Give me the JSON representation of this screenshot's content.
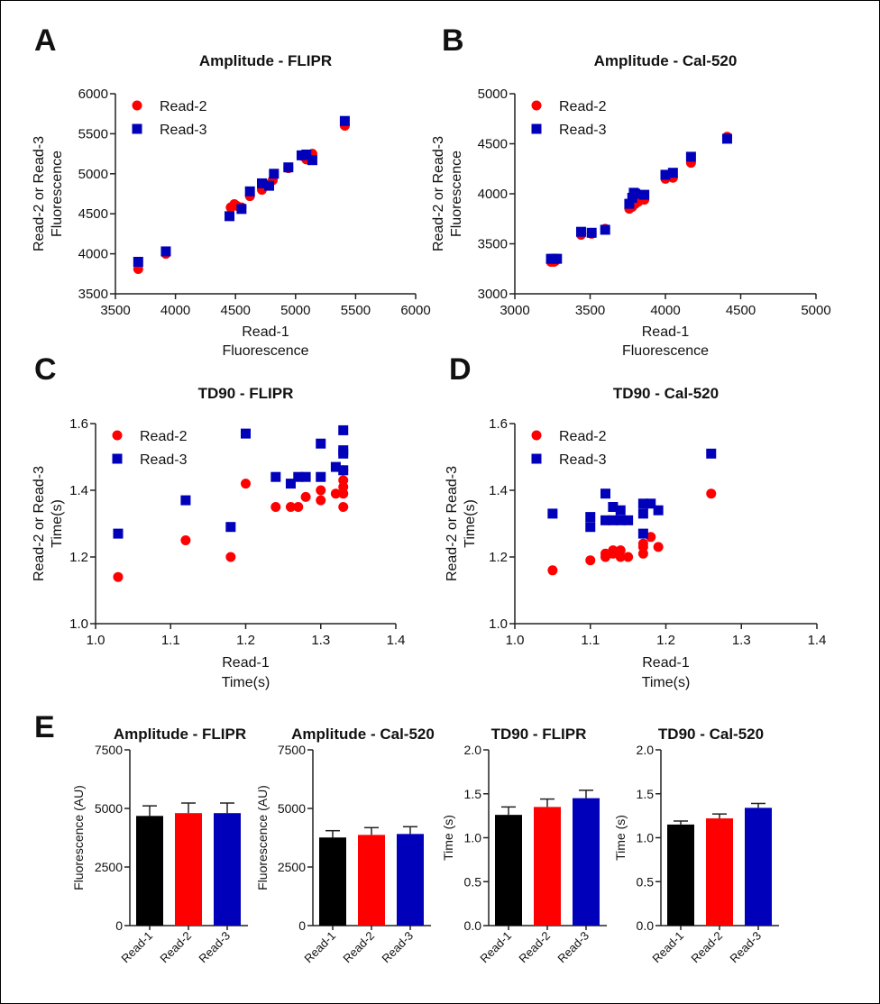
{
  "panel_letters": [
    "A",
    "B",
    "C",
    "D",
    "E"
  ],
  "colors": {
    "read1": "#000000",
    "read2": "#ff0000",
    "read3": "#0000bb"
  },
  "chart_data": [
    {
      "type": "scatter",
      "title": "Amplitude - FLIPR",
      "xlabel": [
        "Read-1",
        "Fluorescence"
      ],
      "ylabel": [
        "Read-2 or Read-3",
        "Fluorescence"
      ],
      "xlim": [
        3500,
        6000
      ],
      "ylim": [
        3500,
        6000
      ],
      "xticks": [
        "3500",
        "4000",
        "4500",
        "5000",
        "5500",
        "6000"
      ],
      "yticks": [
        "3500",
        "4000",
        "4500",
        "5000",
        "5500",
        "6000"
      ],
      "legend": "top-left",
      "series": [
        {
          "name": "Read-2",
          "marker": "circle",
          "color": "#ff0000",
          "points": [
            [
              3690,
              3810
            ],
            [
              3920,
              4000
            ],
            [
              4460,
              4580
            ],
            [
              4490,
              4620
            ],
            [
              4510,
              4600
            ],
            [
              4550,
              4580
            ],
            [
              4620,
              4720
            ],
            [
              4720,
              4800
            ],
            [
              4780,
              4870
            ],
            [
              4810,
              4920
            ],
            [
              4940,
              5070
            ],
            [
              5060,
              5220
            ],
            [
              5090,
              5180
            ],
            [
              5140,
              5250
            ],
            [
              5410,
              5600
            ]
          ]
        },
        {
          "name": "Read-3",
          "marker": "square",
          "color": "#0000bb",
          "points": [
            [
              3690,
              3900
            ],
            [
              3920,
              4030
            ],
            [
              4450,
              4470
            ],
            [
              4550,
              4560
            ],
            [
              4620,
              4780
            ],
            [
              4720,
              4880
            ],
            [
              4780,
              4850
            ],
            [
              4820,
              5000
            ],
            [
              4940,
              5080
            ],
            [
              5050,
              5230
            ],
            [
              5090,
              5240
            ],
            [
              5140,
              5170
            ],
            [
              5410,
              5660
            ]
          ]
        }
      ]
    },
    {
      "type": "scatter",
      "title": "Amplitude - Cal-520",
      "xlabel": [
        "Read-1",
        "Fluorescence"
      ],
      "ylabel": [
        "Read-2 or Read-3",
        "Fluorescence"
      ],
      "xlim": [
        3000,
        5000
      ],
      "ylim": [
        3000,
        5000
      ],
      "xticks": [
        "3000",
        "3500",
        "4000",
        "4500",
        "5000"
      ],
      "yticks": [
        "3000",
        "3500",
        "4000",
        "4500",
        "5000"
      ],
      "legend": "top-left",
      "series": [
        {
          "name": "Read-2",
          "marker": "circle",
          "color": "#ff0000",
          "points": [
            [
              3240,
              3320
            ],
            [
              3260,
              3320
            ],
            [
              3270,
              3330
            ],
            [
              3440,
              3590
            ],
            [
              3510,
              3600
            ],
            [
              3600,
              3650
            ],
            [
              3760,
              3850
            ],
            [
              3780,
              3870
            ],
            [
              3790,
              3930
            ],
            [
              3800,
              3900
            ],
            [
              3820,
              3920
            ],
            [
              3860,
              3940
            ],
            [
              4000,
              4150
            ],
            [
              4050,
              4160
            ],
            [
              4170,
              4310
            ],
            [
              4410,
              4570
            ]
          ]
        },
        {
          "name": "Read-3",
          "marker": "square",
          "color": "#0000bb",
          "points": [
            [
              3240,
              3350
            ],
            [
              3260,
              3350
            ],
            [
              3280,
              3350
            ],
            [
              3440,
              3620
            ],
            [
              3510,
              3610
            ],
            [
              3600,
              3640
            ],
            [
              3760,
              3900
            ],
            [
              3780,
              3960
            ],
            [
              3790,
              4010
            ],
            [
              3800,
              4000
            ],
            [
              3860,
              3990
            ],
            [
              4000,
              4190
            ],
            [
              4050,
              4210
            ],
            [
              4170,
              4370
            ],
            [
              4410,
              4550
            ]
          ]
        }
      ]
    },
    {
      "type": "scatter",
      "title": "TD90 - FLIPR",
      "xlabel": [
        "Read-1",
        "Time(s)"
      ],
      "ylabel": [
        "Read-2 or Read-3",
        "Time(s)"
      ],
      "xlim": [
        1.0,
        1.4
      ],
      "ylim": [
        1.0,
        1.6
      ],
      "xticks": [
        "1.0",
        "1.1",
        "1.2",
        "1.3",
        "1.4"
      ],
      "yticks": [
        "1.0",
        "1.2",
        "1.4",
        "1.6"
      ],
      "legend": "top-left",
      "series": [
        {
          "name": "Read-2",
          "marker": "circle",
          "color": "#ff0000",
          "points": [
            [
              1.03,
              1.14
            ],
            [
              1.12,
              1.25
            ],
            [
              1.18,
              1.2
            ],
            [
              1.2,
              1.42
            ],
            [
              1.24,
              1.35
            ],
            [
              1.26,
              1.35
            ],
            [
              1.27,
              1.35
            ],
            [
              1.28,
              1.38
            ],
            [
              1.3,
              1.37
            ],
            [
              1.3,
              1.4
            ],
            [
              1.32,
              1.39
            ],
            [
              1.33,
              1.35
            ],
            [
              1.33,
              1.39
            ],
            [
              1.33,
              1.41
            ],
            [
              1.33,
              1.43
            ],
            [
              1.33,
              1.46
            ]
          ]
        },
        {
          "name": "Read-3",
          "marker": "square",
          "color": "#0000bb",
          "points": [
            [
              1.03,
              1.27
            ],
            [
              1.12,
              1.37
            ],
            [
              1.18,
              1.29
            ],
            [
              1.2,
              1.57
            ],
            [
              1.24,
              1.44
            ],
            [
              1.26,
              1.42
            ],
            [
              1.27,
              1.44
            ],
            [
              1.28,
              1.44
            ],
            [
              1.3,
              1.44
            ],
            [
              1.3,
              1.54
            ],
            [
              1.32,
              1.47
            ],
            [
              1.33,
              1.46
            ],
            [
              1.33,
              1.51
            ],
            [
              1.33,
              1.52
            ],
            [
              1.33,
              1.58
            ]
          ]
        }
      ]
    },
    {
      "type": "scatter",
      "title": "TD90 - Cal-520",
      "xlabel": [
        "Read-1",
        "Time(s)"
      ],
      "ylabel": [
        "Read-2 or Read-3",
        "Time(s)"
      ],
      "xlim": [
        1.0,
        1.4
      ],
      "ylim": [
        1.0,
        1.6
      ],
      "xticks": [
        "1.0",
        "1.1",
        "1.2",
        "1.3",
        "1.4"
      ],
      "yticks": [
        "1.0",
        "1.2",
        "1.4",
        "1.6"
      ],
      "legend": "top-left",
      "series": [
        {
          "name": "Read-2",
          "marker": "circle",
          "color": "#ff0000",
          "points": [
            [
              1.05,
              1.16
            ],
            [
              1.1,
              1.19
            ],
            [
              1.12,
              1.2
            ],
            [
              1.12,
              1.21
            ],
            [
              1.13,
              1.22
            ],
            [
              1.13,
              1.21
            ],
            [
              1.14,
              1.22
            ],
            [
              1.14,
              1.2
            ],
            [
              1.15,
              1.2
            ],
            [
              1.17,
              1.21
            ],
            [
              1.17,
              1.23
            ],
            [
              1.17,
              1.24
            ],
            [
              1.18,
              1.26
            ],
            [
              1.19,
              1.23
            ],
            [
              1.26,
              1.39
            ]
          ]
        },
        {
          "name": "Read-3",
          "marker": "square",
          "color": "#0000bb",
          "points": [
            [
              1.05,
              1.33
            ],
            [
              1.1,
              1.32
            ],
            [
              1.1,
              1.29
            ],
            [
              1.12,
              1.39
            ],
            [
              1.12,
              1.31
            ],
            [
              1.13,
              1.35
            ],
            [
              1.13,
              1.31
            ],
            [
              1.14,
              1.34
            ],
            [
              1.14,
              1.31
            ],
            [
              1.15,
              1.31
            ],
            [
              1.17,
              1.36
            ],
            [
              1.17,
              1.33
            ],
            [
              1.17,
              1.27
            ],
            [
              1.18,
              1.36
            ],
            [
              1.19,
              1.34
            ],
            [
              1.26,
              1.51
            ]
          ]
        }
      ]
    },
    {
      "type": "bar",
      "title": "Amplitude - FLIPR",
      "ylabel": "Fluorescence (AU)",
      "ylim": [
        0,
        7500
      ],
      "yticks": [
        "0",
        "2500",
        "5000",
        "7500"
      ],
      "categories": [
        "Read-1",
        "Read-2",
        "Read-3"
      ],
      "values": [
        4680,
        4800,
        4800
      ],
      "errors": [
        430,
        430,
        430
      ],
      "bar_colors": [
        "#000000",
        "#ff0000",
        "#0000bb"
      ]
    },
    {
      "type": "bar",
      "title": "Amplitude - Cal-520",
      "ylabel": "Fluorescence (AU)",
      "ylim": [
        0,
        7500
      ],
      "yticks": [
        "0",
        "2500",
        "5000",
        "7500"
      ],
      "categories": [
        "Read-1",
        "Read-2",
        "Read-3"
      ],
      "values": [
        3760,
        3870,
        3910
      ],
      "errors": [
        290,
        310,
        310
      ],
      "bar_colors": [
        "#000000",
        "#ff0000",
        "#0000bb"
      ]
    },
    {
      "type": "bar",
      "title": "TD90 - FLIPR",
      "ylabel": "Time (s)",
      "ylim": [
        0,
        2.0
      ],
      "yticks": [
        "0.0",
        "0.5",
        "1.0",
        "1.5",
        "2.0"
      ],
      "categories": [
        "Read-1",
        "Read-2",
        "Read-3"
      ],
      "values": [
        1.26,
        1.35,
        1.45
      ],
      "errors": [
        0.09,
        0.09,
        0.09
      ],
      "bar_colors": [
        "#000000",
        "#ff0000",
        "#0000bb"
      ]
    },
    {
      "type": "bar",
      "title": "TD90 - Cal-520",
      "ylabel": "Time (s)",
      "ylim": [
        0,
        2.0
      ],
      "yticks": [
        "0.0",
        "0.5",
        "1.0",
        "1.5",
        "2.0"
      ],
      "categories": [
        "Read-1",
        "Read-2",
        "Read-3"
      ],
      "values": [
        1.15,
        1.22,
        1.34
      ],
      "errors": [
        0.04,
        0.05,
        0.05
      ],
      "bar_colors": [
        "#000000",
        "#ff0000",
        "#0000bb"
      ]
    }
  ]
}
